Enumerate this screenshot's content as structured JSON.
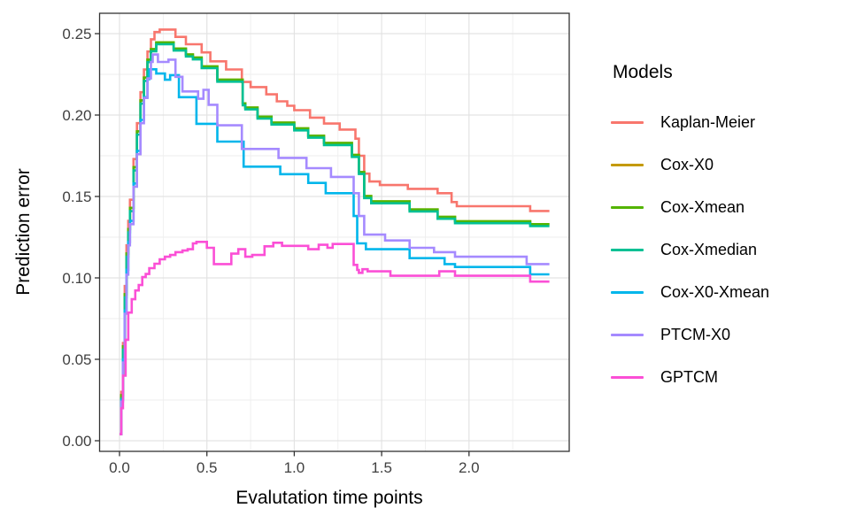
{
  "figure": {
    "background": "#FFFFFF"
  },
  "legend": {
    "title": "Models",
    "position": "right"
  },
  "panel": {
    "border_color": "#333333",
    "grid_major_color": "#E3E3E3",
    "grid_minor_color": "#EEEEEE",
    "tick_color": "#333333",
    "tick_label_color": "#404040"
  },
  "chart_data": {
    "type": "line",
    "line_style": "step-after",
    "title": "",
    "xlabel": "Evalutation time points",
    "ylabel": "Prediction error",
    "xlim": [
      -0.114,
      2.573
    ],
    "ylim": [
      -0.0065,
      0.2625
    ],
    "x_ticks": [
      0.0,
      0.5,
      1.0,
      1.5,
      2.0
    ],
    "x_tick_labels": [
      "0.0",
      "0.5",
      "1.0",
      "1.5",
      "2.0"
    ],
    "x_minor_ticks": [
      0.25,
      0.75,
      1.25,
      1.75,
      2.25
    ],
    "y_ticks": [
      0.0,
      0.05,
      0.1,
      0.15,
      0.2,
      0.25
    ],
    "y_tick_labels": [
      "0.00",
      "0.05",
      "0.10",
      "0.15",
      "0.20",
      "0.25"
    ],
    "y_minor_ticks": [
      0.025,
      0.075,
      0.125,
      0.175,
      0.225
    ],
    "grid": true,
    "legend_position": "right",
    "series": [
      {
        "name": "Kaplan-Meier",
        "color": "#F8766D",
        "points": [
          [
            0,
            0.004
          ],
          [
            0.01,
            0.03
          ],
          [
            0.02,
            0.06
          ],
          [
            0.03,
            0.095
          ],
          [
            0.04,
            0.12
          ],
          [
            0.05,
            0.135
          ],
          [
            0.06,
            0.148
          ],
          [
            0.08,
            0.173
          ],
          [
            0.1,
            0.195
          ],
          [
            0.12,
            0.214
          ],
          [
            0.14,
            0.228
          ],
          [
            0.16,
            0.239
          ],
          [
            0.18,
            0.2465
          ],
          [
            0.2,
            0.251
          ],
          [
            0.23,
            0.2525
          ],
          [
            0.32,
            0.248
          ],
          [
            0.38,
            0.2435
          ],
          [
            0.47,
            0.2385
          ],
          [
            0.52,
            0.233
          ],
          [
            0.61,
            0.228
          ],
          [
            0.7,
            0.2203
          ],
          [
            0.75,
            0.2172
          ],
          [
            0.84,
            0.2127
          ],
          [
            0.9,
            0.2084
          ],
          [
            0.96,
            0.2057
          ],
          [
            1.0,
            0.203
          ],
          [
            1.09,
            0.1984
          ],
          [
            1.17,
            0.1948
          ],
          [
            1.26,
            0.1911
          ],
          [
            1.35,
            0.1855
          ],
          [
            1.37,
            0.175
          ],
          [
            1.4,
            0.164
          ],
          [
            1.43,
            0.1592
          ],
          [
            1.49,
            0.157
          ],
          [
            1.65,
            0.1547
          ],
          [
            1.82,
            0.152
          ],
          [
            1.9,
            0.1466
          ],
          [
            1.93,
            0.144
          ],
          [
            2.35,
            0.1411
          ],
          [
            2.46,
            0.1411
          ]
        ]
      },
      {
        "name": "Cox-X0",
        "color": "#C49A00",
        "points": [
          [
            0,
            0.004
          ],
          [
            0.01,
            0.028
          ],
          [
            0.02,
            0.058
          ],
          [
            0.03,
            0.09
          ],
          [
            0.04,
            0.115
          ],
          [
            0.05,
            0.13
          ],
          [
            0.06,
            0.143
          ],
          [
            0.08,
            0.168
          ],
          [
            0.1,
            0.19
          ],
          [
            0.12,
            0.209
          ],
          [
            0.14,
            0.223
          ],
          [
            0.16,
            0.234
          ],
          [
            0.18,
            0.2405
          ],
          [
            0.21,
            0.2446
          ],
          [
            0.31,
            0.2408
          ],
          [
            0.38,
            0.2372
          ],
          [
            0.42,
            0.2353
          ],
          [
            0.47,
            0.2299
          ],
          [
            0.56,
            0.2217
          ],
          [
            0.705,
            0.2072
          ],
          [
            0.72,
            0.2046
          ],
          [
            0.79,
            0.199
          ],
          [
            0.87,
            0.1954
          ],
          [
            1.0,
            0.1918
          ],
          [
            1.08,
            0.1873
          ],
          [
            1.17,
            0.1828
          ],
          [
            1.33,
            0.1755
          ],
          [
            1.37,
            0.165
          ],
          [
            1.4,
            0.1502
          ],
          [
            1.44,
            0.147
          ],
          [
            1.66,
            0.142
          ],
          [
            1.82,
            0.1375
          ],
          [
            1.92,
            0.1348
          ],
          [
            2.35,
            0.133
          ],
          [
            2.46,
            0.133
          ]
        ]
      },
      {
        "name": "Cox-Xmean",
        "color": "#53B400",
        "points": [
          [
            0,
            0.004
          ],
          [
            0.01,
            0.028
          ],
          [
            0.02,
            0.058
          ],
          [
            0.03,
            0.09
          ],
          [
            0.04,
            0.115
          ],
          [
            0.05,
            0.13
          ],
          [
            0.06,
            0.143
          ],
          [
            0.08,
            0.168
          ],
          [
            0.1,
            0.19
          ],
          [
            0.12,
            0.209
          ],
          [
            0.14,
            0.223
          ],
          [
            0.16,
            0.234
          ],
          [
            0.18,
            0.2405
          ],
          [
            0.21,
            0.2446
          ],
          [
            0.31,
            0.2408
          ],
          [
            0.38,
            0.2372
          ],
          [
            0.42,
            0.2353
          ],
          [
            0.47,
            0.2299
          ],
          [
            0.56,
            0.2217
          ],
          [
            0.705,
            0.2072
          ],
          [
            0.72,
            0.2046
          ],
          [
            0.79,
            0.199
          ],
          [
            0.87,
            0.1954
          ],
          [
            1.0,
            0.1918
          ],
          [
            1.08,
            0.1873
          ],
          [
            1.17,
            0.1828
          ],
          [
            1.33,
            0.1755
          ],
          [
            1.37,
            0.165
          ],
          [
            1.4,
            0.1502
          ],
          [
            1.44,
            0.147
          ],
          [
            1.66,
            0.142
          ],
          [
            1.82,
            0.1375
          ],
          [
            1.92,
            0.1348
          ],
          [
            2.35,
            0.133
          ],
          [
            2.46,
            0.133
          ]
        ]
      },
      {
        "name": "Cox-Xmedian",
        "color": "#00C094",
        "points": [
          [
            0,
            0.004
          ],
          [
            0.01,
            0.026
          ],
          [
            0.02,
            0.056
          ],
          [
            0.03,
            0.088
          ],
          [
            0.04,
            0.113
          ],
          [
            0.05,
            0.128
          ],
          [
            0.06,
            0.141
          ],
          [
            0.08,
            0.166
          ],
          [
            0.1,
            0.188
          ],
          [
            0.12,
            0.207
          ],
          [
            0.14,
            0.221
          ],
          [
            0.16,
            0.2325
          ],
          [
            0.18,
            0.2392
          ],
          [
            0.21,
            0.2435
          ],
          [
            0.31,
            0.2396
          ],
          [
            0.38,
            0.236
          ],
          [
            0.42,
            0.2342
          ],
          [
            0.47,
            0.2288
          ],
          [
            0.56,
            0.2205
          ],
          [
            0.705,
            0.206
          ],
          [
            0.72,
            0.2035
          ],
          [
            0.79,
            0.1978
          ],
          [
            0.87,
            0.1942
          ],
          [
            1.0,
            0.1906
          ],
          [
            1.08,
            0.1861
          ],
          [
            1.17,
            0.1816
          ],
          [
            1.33,
            0.1743
          ],
          [
            1.37,
            0.1638
          ],
          [
            1.4,
            0.149
          ],
          [
            1.44,
            0.1458
          ],
          [
            1.66,
            0.1408
          ],
          [
            1.82,
            0.1363
          ],
          [
            1.92,
            0.1336
          ],
          [
            2.35,
            0.1318
          ],
          [
            2.46,
            0.1318
          ]
        ]
      },
      {
        "name": "Cox-X0-Xmean",
        "color": "#00B6EB",
        "points": [
          [
            0,
            0.004
          ],
          [
            0.01,
            0.025
          ],
          [
            0.02,
            0.05
          ],
          [
            0.03,
            0.08
          ],
          [
            0.04,
            0.105
          ],
          [
            0.05,
            0.122
          ],
          [
            0.06,
            0.135
          ],
          [
            0.08,
            0.158
          ],
          [
            0.1,
            0.178
          ],
          [
            0.12,
            0.197
          ],
          [
            0.14,
            0.211
          ],
          [
            0.16,
            0.222
          ],
          [
            0.17,
            0.2281
          ],
          [
            0.21,
            0.2255
          ],
          [
            0.26,
            0.2217
          ],
          [
            0.29,
            0.2245
          ],
          [
            0.34,
            0.211
          ],
          [
            0.44,
            0.1946
          ],
          [
            0.56,
            0.1837
          ],
          [
            0.71,
            0.1683
          ],
          [
            0.92,
            0.1637
          ],
          [
            1.08,
            0.1583
          ],
          [
            1.18,
            0.152
          ],
          [
            1.34,
            0.138
          ],
          [
            1.36,
            0.1212
          ],
          [
            1.41,
            0.1176
          ],
          [
            1.66,
            0.1121
          ],
          [
            1.86,
            0.1085
          ],
          [
            1.92,
            0.1067
          ],
          [
            2.35,
            0.1022
          ],
          [
            2.46,
            0.1022
          ]
        ]
      },
      {
        "name": "PTCM-X0",
        "color": "#A58AFF",
        "points": [
          [
            0,
            0.004
          ],
          [
            0.01,
            0.024
          ],
          [
            0.02,
            0.048
          ],
          [
            0.03,
            0.078
          ],
          [
            0.04,
            0.102
          ],
          [
            0.05,
            0.12
          ],
          [
            0.06,
            0.133
          ],
          [
            0.08,
            0.156
          ],
          [
            0.1,
            0.176
          ],
          [
            0.12,
            0.195
          ],
          [
            0.14,
            0.2105
          ],
          [
            0.16,
            0.2225
          ],
          [
            0.18,
            0.2326
          ],
          [
            0.19,
            0.2372
          ],
          [
            0.22,
            0.2326
          ],
          [
            0.28,
            0.234
          ],
          [
            0.32,
            0.2235
          ],
          [
            0.36,
            0.2145
          ],
          [
            0.45,
            0.21
          ],
          [
            0.48,
            0.2155
          ],
          [
            0.51,
            0.2063
          ],
          [
            0.56,
            0.1937
          ],
          [
            0.7,
            0.1792
          ],
          [
            0.91,
            0.1737
          ],
          [
            1.07,
            0.1674
          ],
          [
            1.21,
            0.162
          ],
          [
            1.34,
            0.152
          ],
          [
            1.37,
            0.138
          ],
          [
            1.4,
            0.1266
          ],
          [
            1.52,
            0.123
          ],
          [
            1.66,
            0.1185
          ],
          [
            1.8,
            0.1158
          ],
          [
            1.92,
            0.113
          ],
          [
            2.33,
            0.1085
          ],
          [
            2.46,
            0.1085
          ]
        ]
      },
      {
        "name": "GPTCM",
        "color": "#FB4FD6",
        "points": [
          [
            0,
            0.004
          ],
          [
            0.01,
            0.02
          ],
          [
            0.02,
            0.04
          ],
          [
            0.035,
            0.062
          ],
          [
            0.05,
            0.0787
          ],
          [
            0.07,
            0.0869
          ],
          [
            0.09,
            0.0923
          ],
          [
            0.11,
            0.0956
          ],
          [
            0.13,
            0.1005
          ],
          [
            0.15,
            0.1024
          ],
          [
            0.17,
            0.106
          ],
          [
            0.2,
            0.1087
          ],
          [
            0.23,
            0.1114
          ],
          [
            0.26,
            0.113
          ],
          [
            0.29,
            0.1141
          ],
          [
            0.32,
            0.1158
          ],
          [
            0.36,
            0.1168
          ],
          [
            0.39,
            0.1176
          ],
          [
            0.42,
            0.1212
          ],
          [
            0.44,
            0.1221
          ],
          [
            0.5,
            0.1185
          ],
          [
            0.54,
            0.1085
          ],
          [
            0.64,
            0.1149
          ],
          [
            0.68,
            0.1176
          ],
          [
            0.72,
            0.113
          ],
          [
            0.76,
            0.1141
          ],
          [
            0.83,
            0.1194
          ],
          [
            0.88,
            0.1216
          ],
          [
            0.93,
            0.1197
          ],
          [
            1.08,
            0.1176
          ],
          [
            1.14,
            0.1203
          ],
          [
            1.19,
            0.1185
          ],
          [
            1.22,
            0.1208
          ],
          [
            1.34,
            0.108
          ],
          [
            1.36,
            0.1049
          ],
          [
            1.37,
            0.1031
          ],
          [
            1.39,
            0.1053
          ],
          [
            1.42,
            0.104
          ],
          [
            1.55,
            0.1013
          ],
          [
            1.83,
            0.104
          ],
          [
            1.92,
            0.1013
          ],
          [
            2.35,
            0.0977
          ],
          [
            2.46,
            0.0977
          ]
        ]
      }
    ]
  }
}
